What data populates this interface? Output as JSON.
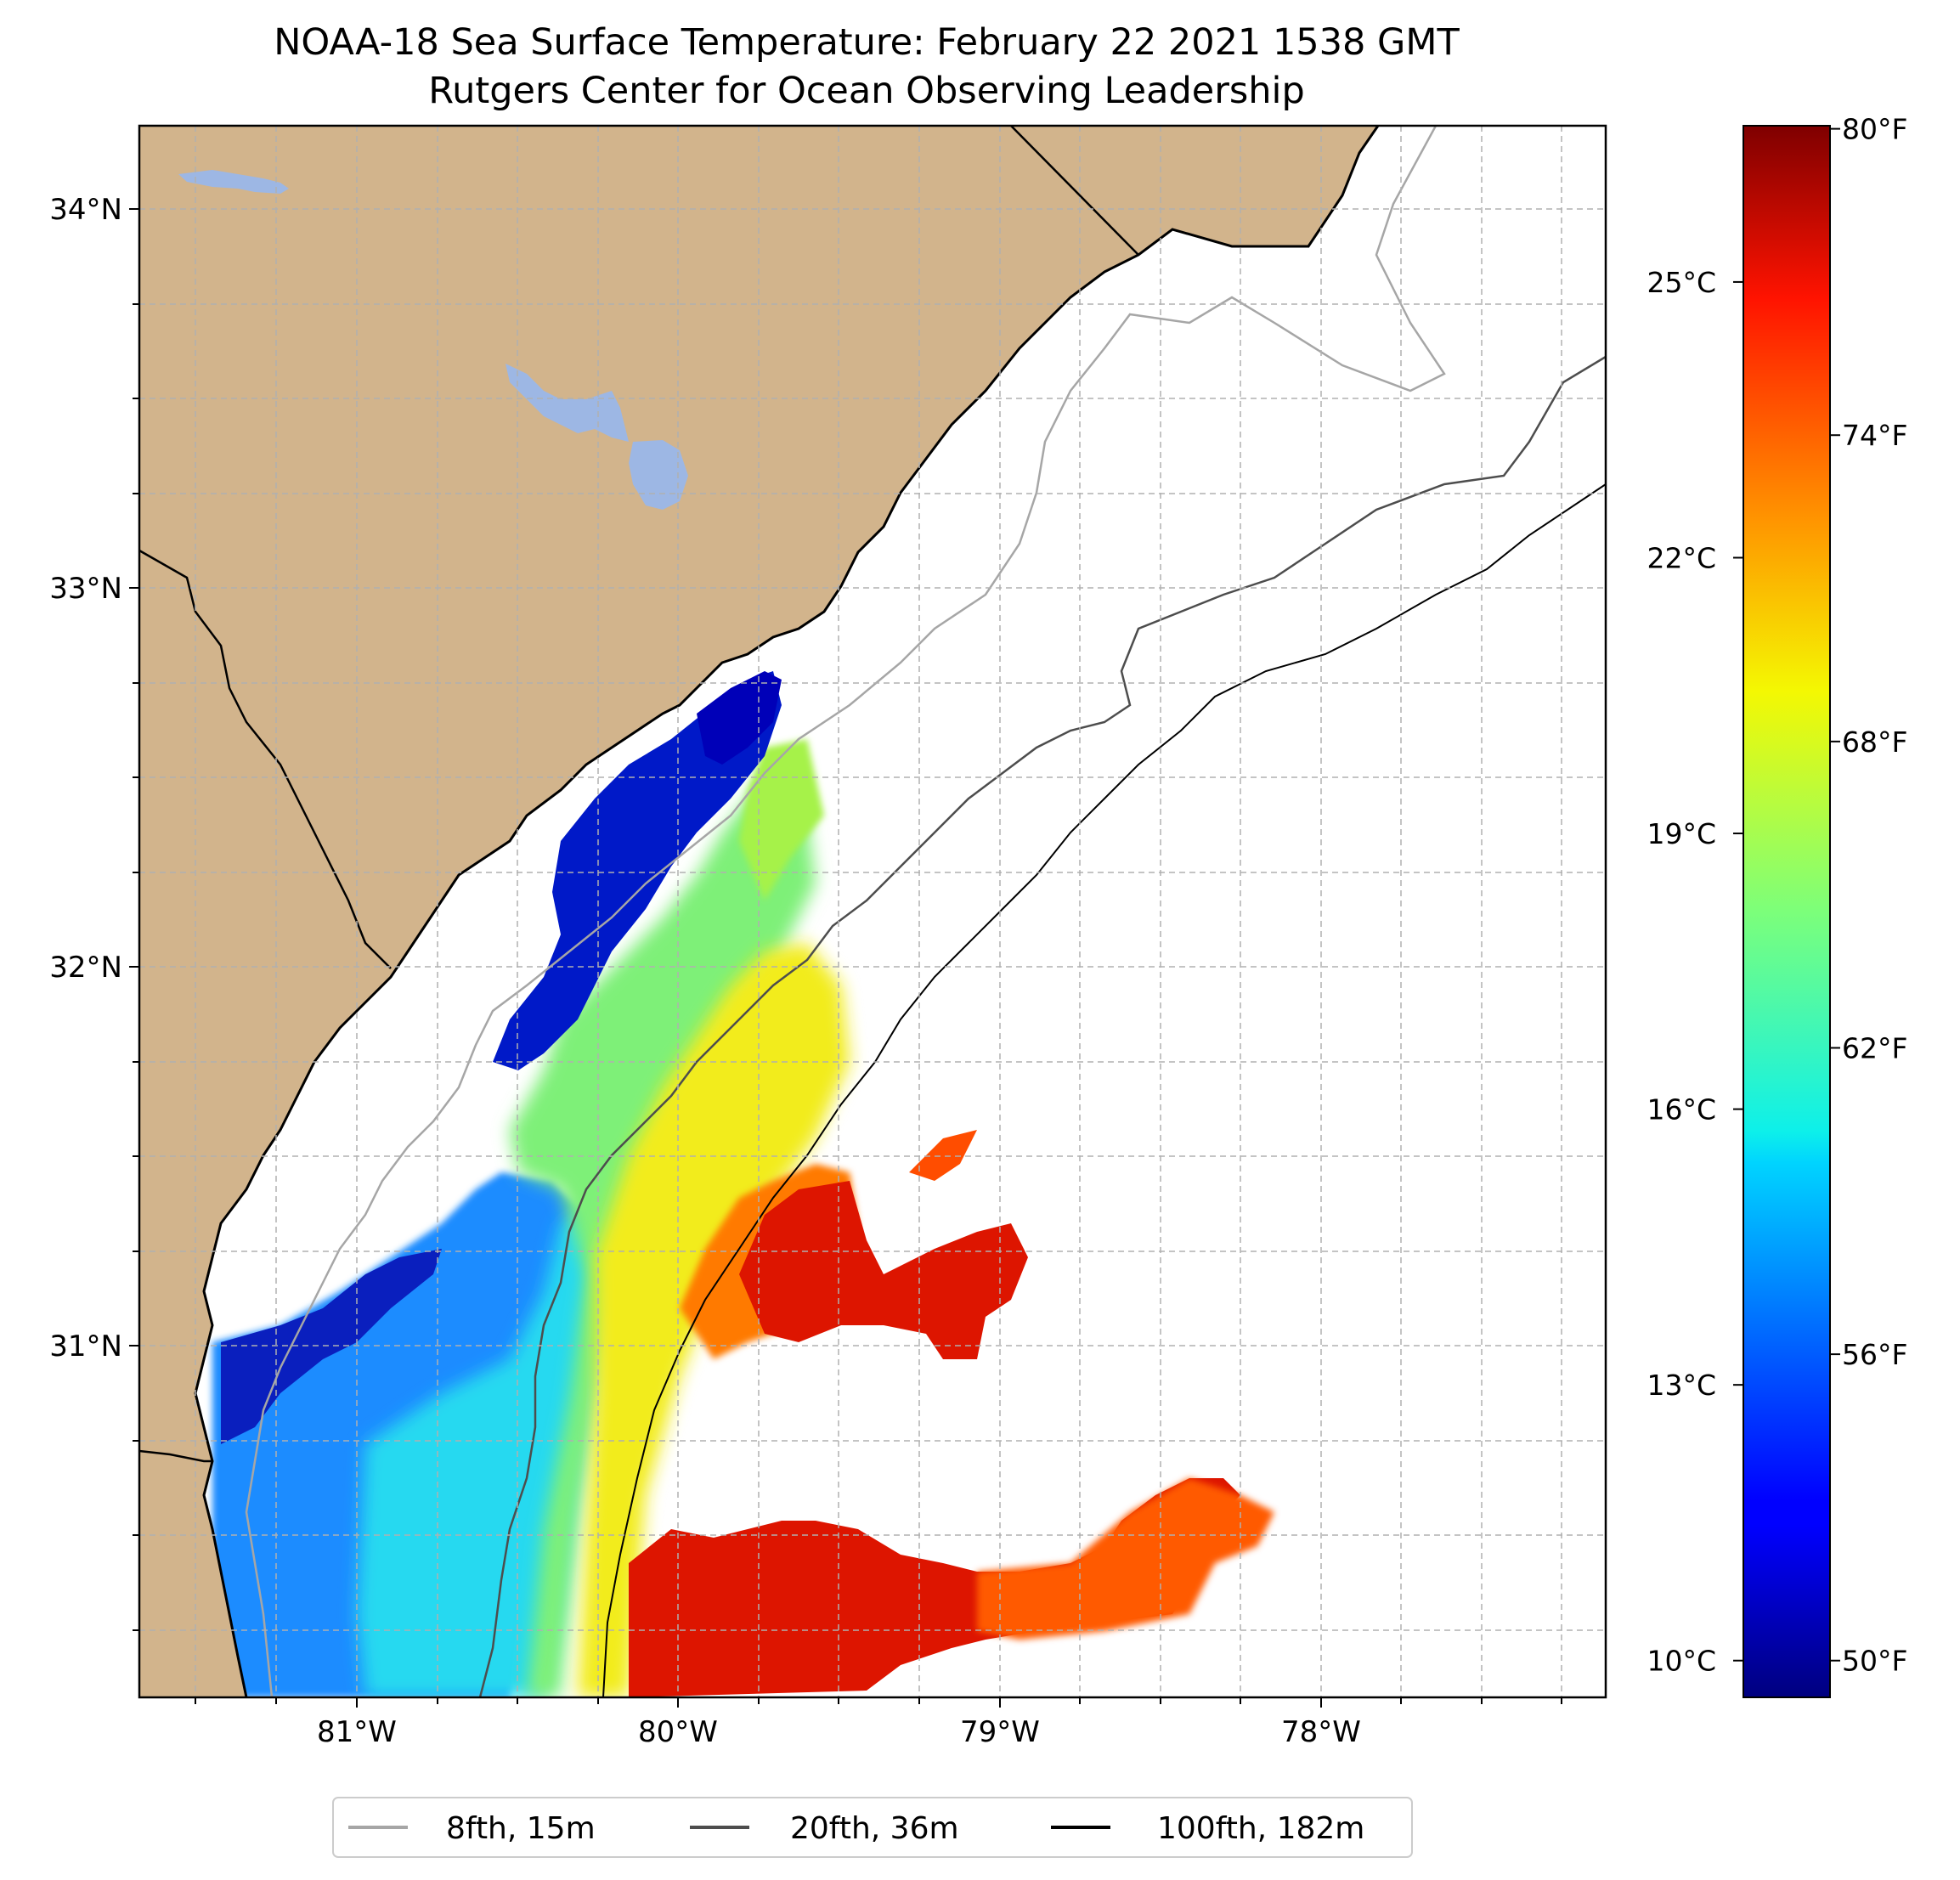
{
  "title": {
    "line1": "NOAA-18 Sea Surface Temperature: February 22 2021 1538 GMT",
    "line2": "Rutgers Center for Ocean Observing Leadership"
  },
  "map": {
    "lat_range": [
      30.08,
      34.22
    ],
    "lon_range": [
      -81.68,
      -77.12
    ],
    "lat_labels": [
      "34°N",
      "33°N",
      "32°N",
      "31°N"
    ],
    "lon_labels": [
      "81°W",
      "80°W",
      "79°W",
      "78°W"
    ],
    "colors": {
      "land": "#d2b48c",
      "lakes": "#9db7e4",
      "ocean_no_data": "#ffffff",
      "gridline": "#b0b0b0",
      "coastline": "#000000"
    }
  },
  "colorbar": {
    "colormap": "jet",
    "celsius_labels": [
      "25°C",
      "22°C",
      "19°C",
      "16°C",
      "13°C",
      "10°C"
    ],
    "fahrenheit_labels": [
      "80°F",
      "74°F",
      "68°F",
      "62°F",
      "56°F",
      "50°F"
    ],
    "range_c": [
      9.6,
      26.7
    ]
  },
  "legend": {
    "items": [
      {
        "label": "8fth, 15m",
        "color": "#a6a6a6"
      },
      {
        "label": "20fth, 36m",
        "color": "#4d4d4d"
      },
      {
        "label": "100fth, 182m",
        "color": "#000000"
      }
    ]
  }
}
